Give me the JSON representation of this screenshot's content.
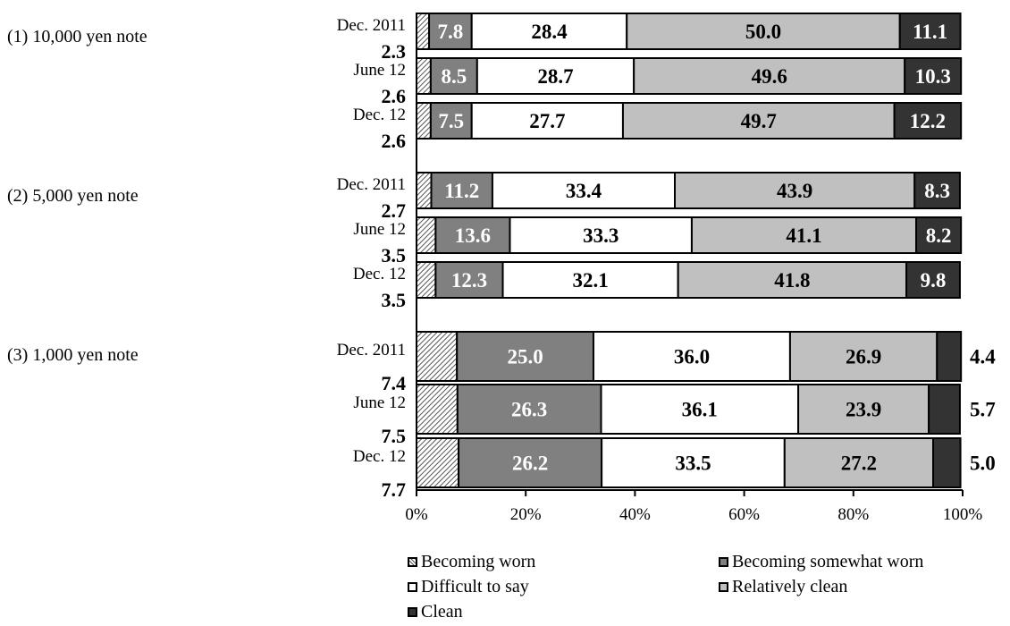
{
  "chart_data": {
    "type": "bar",
    "orientation": "horizontal",
    "stacked": "percent",
    "xlim": [
      0,
      100
    ],
    "x_ticks": [
      "0%",
      "20%",
      "40%",
      "60%",
      "80%",
      "100%"
    ],
    "series_names": [
      "Becoming worn",
      "Becoming somewhat worn",
      "Difficult to say",
      "Relatively clean",
      "Clean"
    ],
    "series_colors": [
      "#c8c8c8",
      "#808080",
      "#ffffff",
      "#c0c0c0",
      "#333333"
    ],
    "legend_position": "bottom",
    "groups": [
      {
        "label": "(1) 10,000 yen note",
        "rows": [
          {
            "label": "Dec. 2011",
            "values": [
              2.3,
              7.8,
              28.4,
              50.0,
              11.1
            ]
          },
          {
            "label": "June 12",
            "values": [
              2.6,
              8.5,
              28.7,
              49.6,
              10.3
            ]
          },
          {
            "label": "Dec. 12",
            "values": [
              2.6,
              7.5,
              27.7,
              49.7,
              12.2
            ]
          }
        ]
      },
      {
        "label": "(2) 5,000 yen note",
        "rows": [
          {
            "label": "Dec. 2011",
            "values": [
              2.7,
              11.2,
              33.4,
              43.9,
              8.3
            ]
          },
          {
            "label": "June 12",
            "values": [
              3.5,
              13.6,
              33.3,
              41.1,
              8.2
            ]
          },
          {
            "label": "Dec. 12",
            "values": [
              3.5,
              12.3,
              32.1,
              41.8,
              9.8
            ]
          }
        ]
      },
      {
        "label": "(3) 1,000 yen note",
        "rows": [
          {
            "label": "Dec. 2011",
            "values": [
              7.4,
              25.0,
              36.0,
              26.9,
              4.4
            ]
          },
          {
            "label": "June 12",
            "values": [
              7.5,
              26.3,
              36.1,
              23.9,
              5.7
            ]
          },
          {
            "label": "Dec. 12",
            "values": [
              7.7,
              26.2,
              33.5,
              27.2,
              5.0
            ]
          }
        ]
      }
    ]
  }
}
